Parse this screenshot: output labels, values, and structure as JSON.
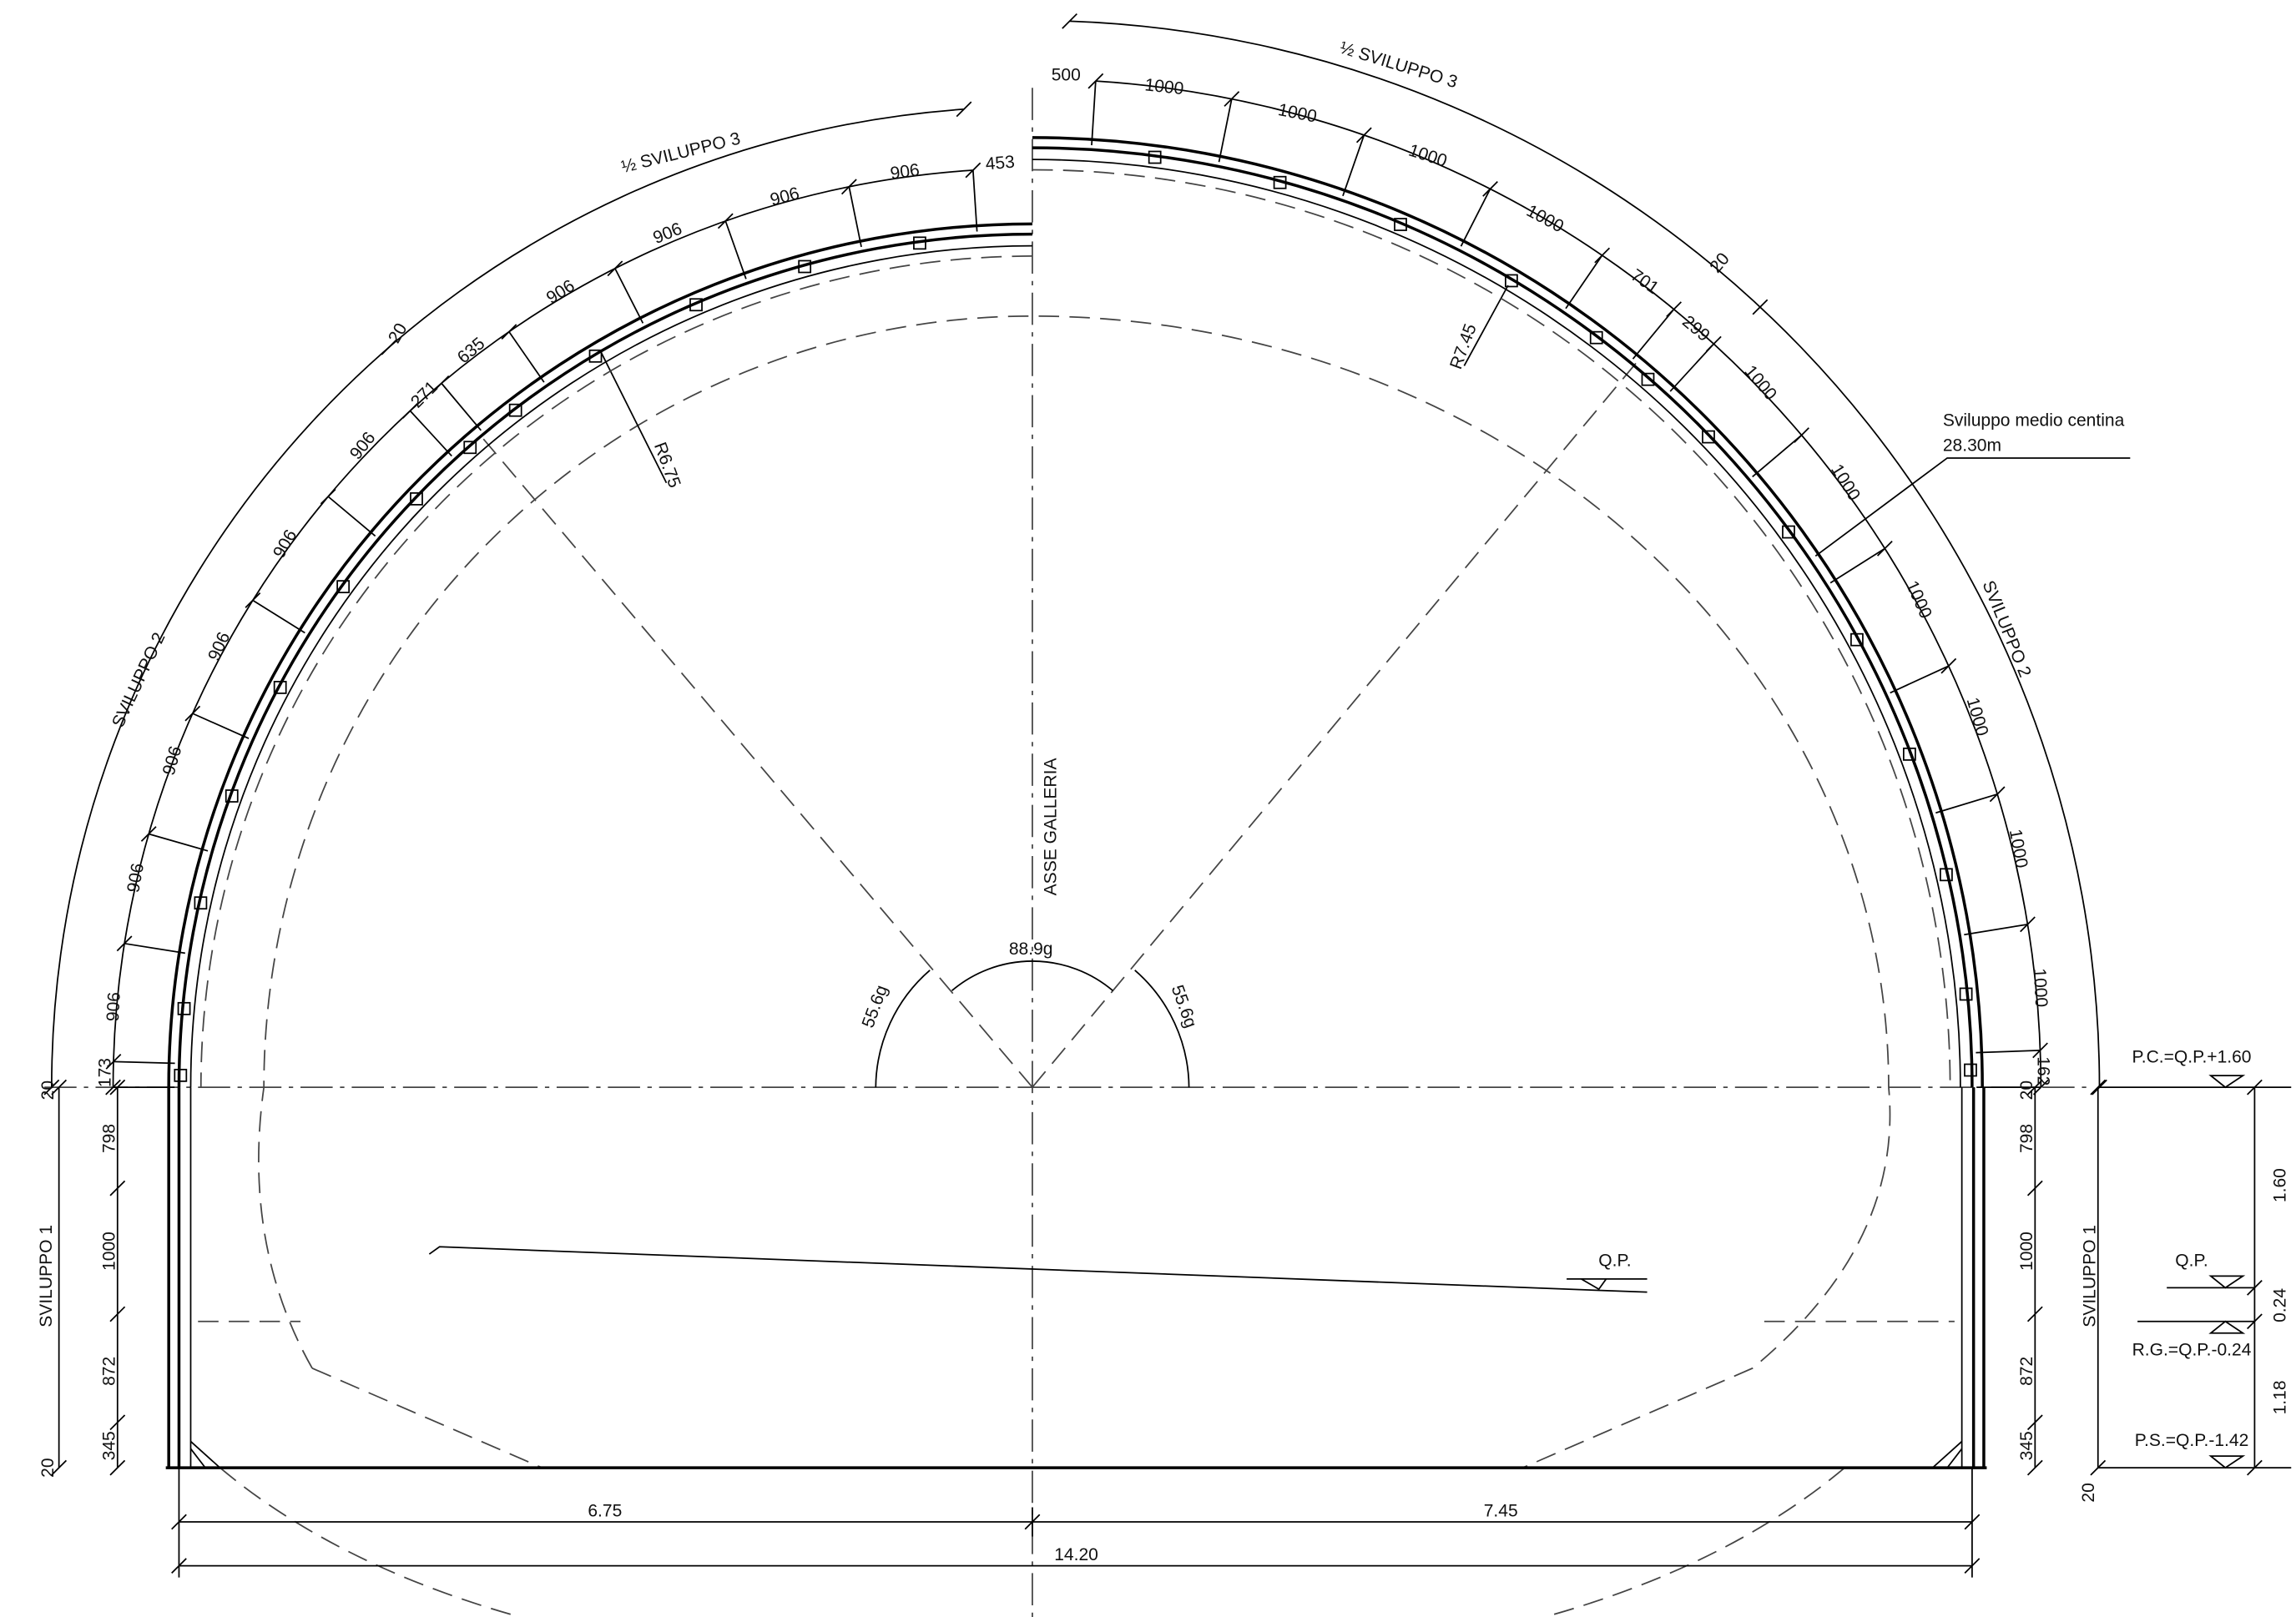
{
  "labels": [
    "453",
    "906",
    "906",
    "906",
    "906",
    "635",
    "271",
    "906",
    "906",
    "906",
    "906",
    "906",
    "906",
    "173",
    "20",
    "½ SVILUPPO 3",
    "SVILUPPO 2",
    "500",
    "1000",
    "1000",
    "1000",
    "1000",
    "701",
    "20",
    "299",
    "1000",
    "1000",
    "1000",
    "1000",
    "1000",
    "1000",
    "162",
    "½ SVILUPPO 3",
    "SVILUPPO 2",
    "R6.75",
    "R7.45",
    "Sviluppo medio centina",
    "28.30m",
    "ASSE GALLERIA",
    "55.6g",
    "88.9g",
    "55.6g",
    "20",
    "798",
    "1000",
    "872",
    "345",
    "20",
    "SVILUPPO 1",
    "20",
    "798",
    "1000",
    "872",
    "345",
    "20",
    "SVILUPPO 1",
    "P.C.=Q.P.+1.60",
    "Q.P.",
    "R.G.=Q.P.-0.24",
    "P.S.=Q.P.-1.42",
    "1.60",
    "0.24",
    "1.18",
    "Q.P.",
    "6.75",
    "7.45",
    "14.20"
  ]
}
